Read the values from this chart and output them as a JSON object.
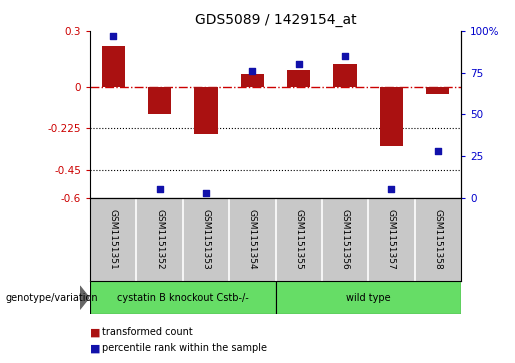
{
  "title": "GDS5089 / 1429154_at",
  "samples": [
    "GSM1151351",
    "GSM1151352",
    "GSM1151353",
    "GSM1151354",
    "GSM1151355",
    "GSM1151356",
    "GSM1151357",
    "GSM1151358"
  ],
  "transformed_count": [
    0.22,
    -0.15,
    -0.255,
    0.07,
    0.09,
    0.12,
    -0.32,
    -0.04
  ],
  "percentile_rank": [
    97,
    5,
    3,
    76,
    80,
    85,
    5,
    28
  ],
  "ylim_left": [
    -0.6,
    0.3
  ],
  "ylim_right": [
    0,
    100
  ],
  "yticks_left": [
    0.3,
    0.0,
    -0.225,
    -0.45,
    -0.6
  ],
  "ytick_labels_left": [
    "0.3",
    "0",
    "-0.225",
    "-0.45",
    "-0.6"
  ],
  "yticks_right": [
    100,
    75,
    50,
    25,
    0
  ],
  "ytick_labels_right": [
    "100%",
    "75",
    "50",
    "25",
    "0"
  ],
  "hlines": [
    -0.225,
    -0.45
  ],
  "zero_line": 0.0,
  "bar_color": "#AA1111",
  "dot_color": "#1111AA",
  "bar_width": 0.5,
  "dot_size": 25,
  "group1_label": "cystatin B knockout Cstb-/-",
  "group2_label": "wild type",
  "group1_indices": [
    0,
    1,
    2,
    3
  ],
  "group2_indices": [
    4,
    5,
    6,
    7
  ],
  "group1_color": "#66DD66",
  "group2_color": "#66DD66",
  "genotype_label": "genotype/variation",
  "legend1_label": "transformed count",
  "legend2_label": "percentile rank within the sample",
  "background_color": "#ffffff",
  "plot_bg_color": "#ffffff",
  "zero_line_color": "#CC0000",
  "right_axis_color": "#0000CC",
  "left_axis_color": "#CC0000",
  "label_bg_color": "#C8C8C8"
}
